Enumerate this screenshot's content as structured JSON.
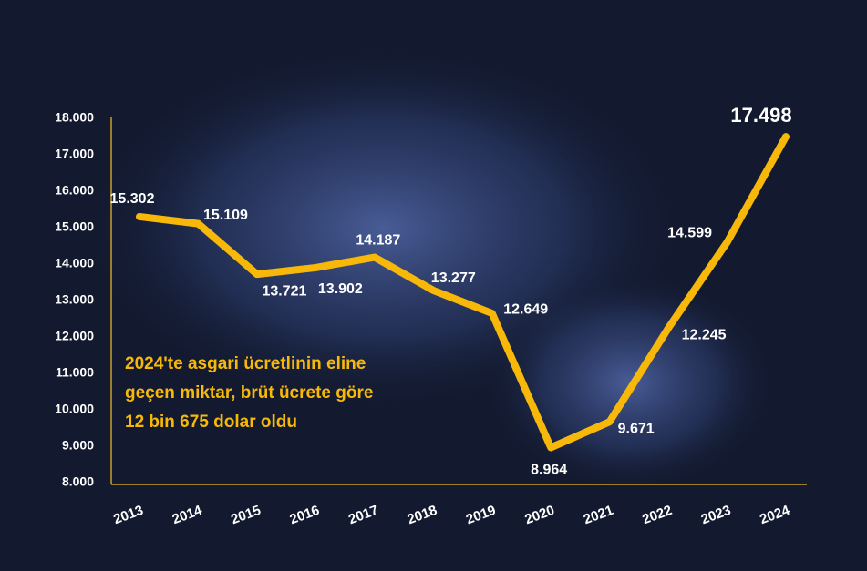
{
  "chart_data": {
    "type": "line",
    "categories": [
      "2013",
      "2014",
      "2015",
      "2016",
      "2017",
      "2018",
      "2019",
      "2020",
      "2021",
      "2022",
      "2023",
      "2024"
    ],
    "values": [
      15302,
      15109,
      13721,
      13902,
      14187,
      13277,
      12649,
      8964,
      9671,
      12245,
      14599,
      17498
    ],
    "value_labels": [
      "15.302",
      "15.109",
      "13.721",
      "13.902",
      "14.187",
      "13.277",
      "12.649",
      "8.964",
      "9.671",
      "12.245",
      "14.599",
      "17.498"
    ],
    "color": "#f7b80a",
    "ylim": [
      8000,
      18000
    ],
    "yticks": [
      {
        "value": 8000,
        "label": "8.000"
      },
      {
        "value": 9000,
        "label": "9.000"
      },
      {
        "value": 10000,
        "label": "10.000"
      },
      {
        "value": 11000,
        "label": "11.000"
      },
      {
        "value": 12000,
        "label": "12.000"
      },
      {
        "value": 13000,
        "label": "13.000"
      },
      {
        "value": 14000,
        "label": "14.000"
      },
      {
        "value": 15000,
        "label": "15.000"
      },
      {
        "value": 16000,
        "label": "16.000"
      },
      {
        "value": 17000,
        "label": "17.000"
      },
      {
        "value": 18000,
        "label": "18.000"
      }
    ],
    "annotation": [
      "2024'te asgari ücretlinin eline",
      "geçen miktar, brüt ücrete göre",
      "12 bin 675 dolar oldu"
    ]
  }
}
